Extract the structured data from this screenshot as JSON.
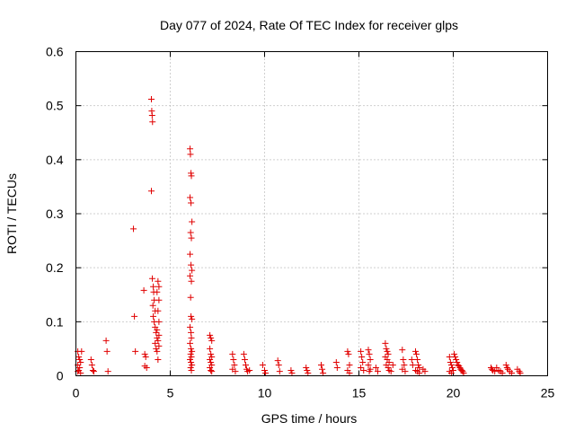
{
  "chart_data": {
    "type": "scatter",
    "title": "Day 077 of 2024, Rate Of TEC Index for receiver glps",
    "xlabel": "GPS time / hours",
    "ylabel": "ROTI / TECUs",
    "xlim": [
      0,
      25
    ],
    "ylim": [
      0,
      0.6
    ],
    "xticks": [
      0,
      5,
      10,
      15,
      20,
      25
    ],
    "yticks": [
      0,
      0.1,
      0.2,
      0.3,
      0.4,
      0.5,
      0.6
    ],
    "xtick_labels": [
      "0",
      "5",
      "10",
      "15",
      "20",
      "25"
    ],
    "ytick_labels": [
      "0",
      "0.1",
      "0.2",
      "0.3",
      "0.4",
      "0.5",
      "0.6"
    ],
    "grid": true,
    "marker": "+",
    "series_color": "#e00000",
    "series": [
      {
        "name": "ROTI",
        "points": [
          [
            0.1,
            0.045
          ],
          [
            0.15,
            0.035
          ],
          [
            0.2,
            0.03
          ],
          [
            0.1,
            0.02
          ],
          [
            0.2,
            0.015
          ],
          [
            0.15,
            0.01
          ],
          [
            0.25,
            0.005
          ],
          [
            0.1,
            0.008
          ],
          [
            0.3,
            0.045
          ],
          [
            0.25,
            0.025
          ],
          [
            0.8,
            0.03
          ],
          [
            0.85,
            0.02
          ],
          [
            0.9,
            0.01
          ],
          [
            0.95,
            0.008
          ],
          [
            1.6,
            0.065
          ],
          [
            1.65,
            0.045
          ],
          [
            1.7,
            0.008
          ],
          [
            3.05,
            0.272
          ],
          [
            3.1,
            0.11
          ],
          [
            3.15,
            0.045
          ],
          [
            3.6,
            0.158
          ],
          [
            3.65,
            0.04
          ],
          [
            3.7,
            0.035
          ],
          [
            3.65,
            0.018
          ],
          [
            3.75,
            0.015
          ],
          [
            4.0,
            0.512
          ],
          [
            4.02,
            0.49
          ],
          [
            4.04,
            0.482
          ],
          [
            4.06,
            0.47
          ],
          [
            4.0,
            0.342
          ],
          [
            4.05,
            0.18
          ],
          [
            4.1,
            0.165
          ],
          [
            4.12,
            0.155
          ],
          [
            4.15,
            0.14
          ],
          [
            4.08,
            0.13
          ],
          [
            4.2,
            0.12
          ],
          [
            4.1,
            0.11
          ],
          [
            4.15,
            0.1
          ],
          [
            4.2,
            0.09
          ],
          [
            4.25,
            0.08
          ],
          [
            4.3,
            0.07
          ],
          [
            4.2,
            0.06
          ],
          [
            4.25,
            0.05
          ],
          [
            4.3,
            0.045
          ],
          [
            4.35,
            0.03
          ],
          [
            4.35,
            0.175
          ],
          [
            4.4,
            0.165
          ],
          [
            4.3,
            0.155
          ],
          [
            4.4,
            0.14
          ],
          [
            4.35,
            0.12
          ],
          [
            4.4,
            0.1
          ],
          [
            4.3,
            0.085
          ],
          [
            4.4,
            0.075
          ],
          [
            4.35,
            0.065
          ],
          [
            4.4,
            0.055
          ],
          [
            6.05,
            0.42
          ],
          [
            6.07,
            0.41
          ],
          [
            6.1,
            0.375
          ],
          [
            6.12,
            0.37
          ],
          [
            6.05,
            0.33
          ],
          [
            6.1,
            0.32
          ],
          [
            6.15,
            0.285
          ],
          [
            6.08,
            0.265
          ],
          [
            6.12,
            0.255
          ],
          [
            6.05,
            0.225
          ],
          [
            6.1,
            0.205
          ],
          [
            6.15,
            0.195
          ],
          [
            6.05,
            0.185
          ],
          [
            6.12,
            0.175
          ],
          [
            6.08,
            0.145
          ],
          [
            6.1,
            0.11
          ],
          [
            6.15,
            0.105
          ],
          [
            6.05,
            0.09
          ],
          [
            6.1,
            0.08
          ],
          [
            6.12,
            0.07
          ],
          [
            6.05,
            0.06
          ],
          [
            6.1,
            0.05
          ],
          [
            6.15,
            0.045
          ],
          [
            6.08,
            0.04
          ],
          [
            6.12,
            0.035
          ],
          [
            6.05,
            0.03
          ],
          [
            6.1,
            0.025
          ],
          [
            6.15,
            0.02
          ],
          [
            6.08,
            0.015
          ],
          [
            6.12,
            0.01
          ],
          [
            7.1,
            0.075
          ],
          [
            7.15,
            0.07
          ],
          [
            7.2,
            0.065
          ],
          [
            7.1,
            0.05
          ],
          [
            7.15,
            0.04
          ],
          [
            7.2,
            0.035
          ],
          [
            7.1,
            0.03
          ],
          [
            7.15,
            0.025
          ],
          [
            7.2,
            0.02
          ],
          [
            7.1,
            0.015
          ],
          [
            7.15,
            0.01
          ],
          [
            7.2,
            0.008
          ],
          [
            8.3,
            0.04
          ],
          [
            8.35,
            0.03
          ],
          [
            8.4,
            0.02
          ],
          [
            8.3,
            0.012
          ],
          [
            8.45,
            0.008
          ],
          [
            8.9,
            0.04
          ],
          [
            8.95,
            0.03
          ],
          [
            9.0,
            0.02
          ],
          [
            9.05,
            0.012
          ],
          [
            9.1,
            0.008
          ],
          [
            9.2,
            0.01
          ],
          [
            9.9,
            0.02
          ],
          [
            10.0,
            0.01
          ],
          [
            10.05,
            0.005
          ],
          [
            10.7,
            0.028
          ],
          [
            10.75,
            0.02
          ],
          [
            10.8,
            0.008
          ],
          [
            11.4,
            0.01
          ],
          [
            11.45,
            0.005
          ],
          [
            12.2,
            0.015
          ],
          [
            12.25,
            0.01
          ],
          [
            12.3,
            0.005
          ],
          [
            13.0,
            0.02
          ],
          [
            13.05,
            0.012
          ],
          [
            13.1,
            0.005
          ],
          [
            13.8,
            0.025
          ],
          [
            13.85,
            0.015
          ],
          [
            14.4,
            0.045
          ],
          [
            14.45,
            0.04
          ],
          [
            14.5,
            0.02
          ],
          [
            14.4,
            0.01
          ],
          [
            14.5,
            0.005
          ],
          [
            15.1,
            0.045
          ],
          [
            15.15,
            0.035
          ],
          [
            15.2,
            0.025
          ],
          [
            15.1,
            0.015
          ],
          [
            15.25,
            0.01
          ],
          [
            15.5,
            0.048
          ],
          [
            15.55,
            0.04
          ],
          [
            15.6,
            0.03
          ],
          [
            15.5,
            0.02
          ],
          [
            15.6,
            0.012
          ],
          [
            15.55,
            0.008
          ],
          [
            15.9,
            0.015
          ],
          [
            16.0,
            0.008
          ],
          [
            16.4,
            0.06
          ],
          [
            16.45,
            0.05
          ],
          [
            16.5,
            0.045
          ],
          [
            16.55,
            0.04
          ],
          [
            16.4,
            0.035
          ],
          [
            16.5,
            0.03
          ],
          [
            16.6,
            0.025
          ],
          [
            16.45,
            0.02
          ],
          [
            16.55,
            0.015
          ],
          [
            16.6,
            0.01
          ],
          [
            16.7,
            0.008
          ],
          [
            16.8,
            0.02
          ],
          [
            17.3,
            0.048
          ],
          [
            17.35,
            0.03
          ],
          [
            17.4,
            0.02
          ],
          [
            17.3,
            0.012
          ],
          [
            17.45,
            0.008
          ],
          [
            17.8,
            0.03
          ],
          [
            17.85,
            0.02
          ],
          [
            18.0,
            0.045
          ],
          [
            18.05,
            0.04
          ],
          [
            18.1,
            0.03
          ],
          [
            18.15,
            0.02
          ],
          [
            18.2,
            0.015
          ],
          [
            18.0,
            0.01
          ],
          [
            18.1,
            0.008
          ],
          [
            18.2,
            0.005
          ],
          [
            18.4,
            0.012
          ],
          [
            18.5,
            0.008
          ],
          [
            19.8,
            0.035
          ],
          [
            19.85,
            0.025
          ],
          [
            19.9,
            0.02
          ],
          [
            19.95,
            0.015
          ],
          [
            20.0,
            0.01
          ],
          [
            19.8,
            0.008
          ],
          [
            19.9,
            0.005
          ],
          [
            20.05,
            0.04
          ],
          [
            20.1,
            0.035
          ],
          [
            20.15,
            0.03
          ],
          [
            20.2,
            0.025
          ],
          [
            20.25,
            0.02
          ],
          [
            20.3,
            0.018
          ],
          [
            20.35,
            0.015
          ],
          [
            20.4,
            0.012
          ],
          [
            20.45,
            0.01
          ],
          [
            20.5,
            0.008
          ],
          [
            20.55,
            0.005
          ],
          [
            22.0,
            0.015
          ],
          [
            22.05,
            0.012
          ],
          [
            22.1,
            0.01
          ],
          [
            22.2,
            0.008
          ],
          [
            22.3,
            0.015
          ],
          [
            22.4,
            0.01
          ],
          [
            22.5,
            0.008
          ],
          [
            22.6,
            0.005
          ],
          [
            22.8,
            0.02
          ],
          [
            22.85,
            0.015
          ],
          [
            22.9,
            0.012
          ],
          [
            23.0,
            0.008
          ],
          [
            23.1,
            0.005
          ],
          [
            23.4,
            0.012
          ],
          [
            23.5,
            0.008
          ],
          [
            23.55,
            0.005
          ]
        ]
      }
    ]
  }
}
